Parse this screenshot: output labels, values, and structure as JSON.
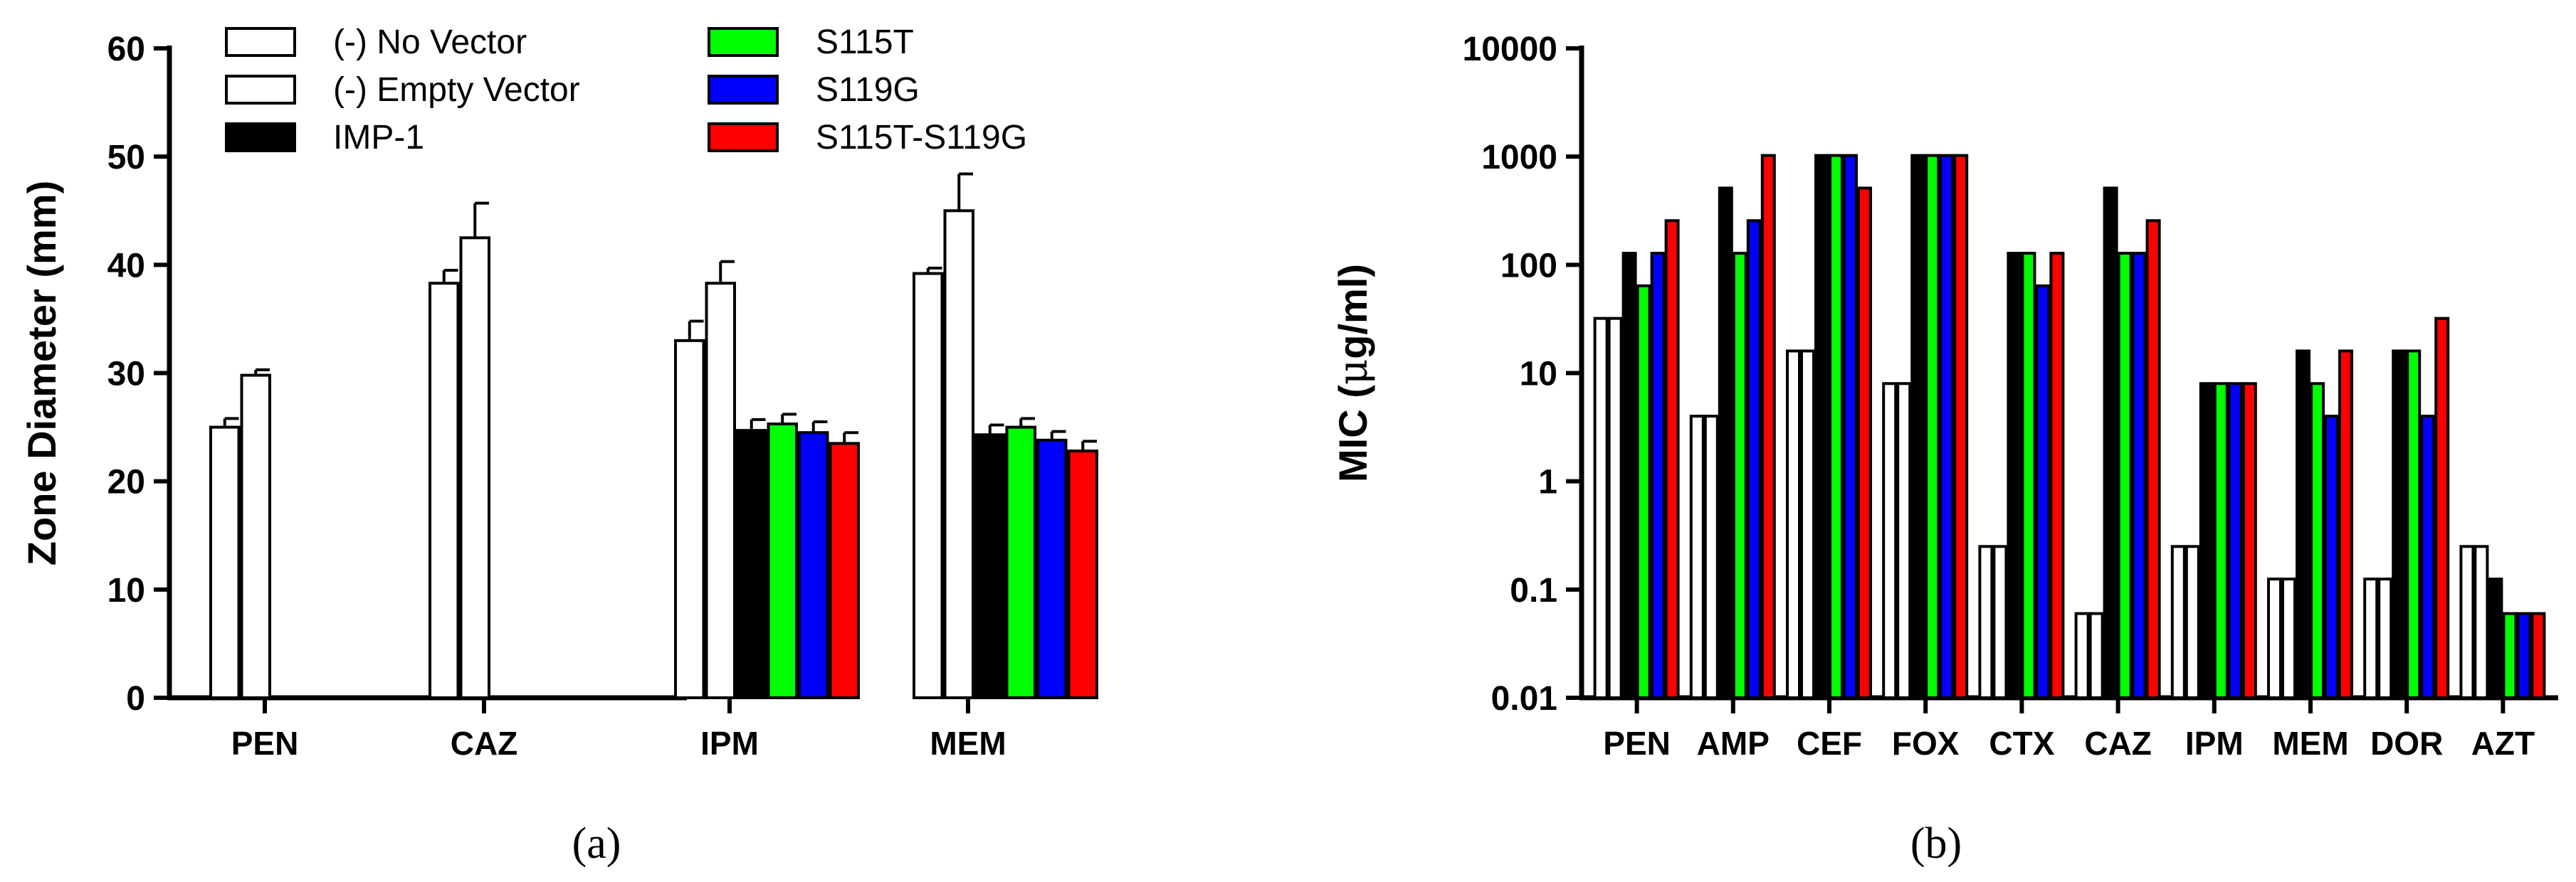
{
  "chart_data": [
    {
      "id": "a",
      "type": "bar",
      "panel_label": "(a)",
      "title": "",
      "xlabel": "",
      "ylabel": "Zone Diameter (mm)",
      "ylim": [
        0,
        60
      ],
      "yticks": [
        0,
        10,
        20,
        30,
        40,
        50,
        60
      ],
      "categories": [
        "PEN",
        "CAZ",
        "IPM",
        "MEM"
      ],
      "series": [
        {
          "name": "(-) No Vector",
          "color": "#ffffff",
          "values": [
            25,
            38.3,
            33,
            39.2
          ],
          "errors": [
            0.8,
            1.2,
            1.8,
            0.5
          ]
        },
        {
          "name": "(-) Empty Vector",
          "color": "#ffffff",
          "values": [
            29.8,
            42.5,
            38.3,
            45
          ],
          "errors": [
            0.5,
            3.2,
            2,
            3.4
          ]
        },
        {
          "name": "IMP-1",
          "color": "#000000",
          "values": [
            0,
            0,
            24.7,
            24.3
          ],
          "errors": [
            0,
            0,
            1,
            0.9
          ]
        },
        {
          "name": "S115T",
          "color": "#00ff00",
          "values": [
            0,
            0,
            25.3,
            25
          ],
          "errors": [
            0,
            0,
            0.9,
            0.8
          ]
        },
        {
          "name": "S119G",
          "color": "#0000ff",
          "values": [
            0,
            0,
            24.5,
            23.8
          ],
          "errors": [
            0,
            0,
            1,
            0.8
          ]
        },
        {
          "name": "S115T-S119G",
          "color": "#ff0000",
          "values": [
            0,
            0,
            23.5,
            22.8
          ],
          "errors": [
            0,
            0,
            1,
            0.9
          ]
        }
      ],
      "legend_position": "top"
    },
    {
      "id": "b",
      "type": "bar",
      "panel_label": "(b)",
      "title": "",
      "xlabel": "",
      "ylabel_main": "MIC (",
      "ylabel_mu": "μ",
      "ylabel_rest": "g/ml)",
      "yscale": "log",
      "ylim": [
        0.01,
        10000
      ],
      "yticks": [
        0.01,
        0.1,
        1,
        10,
        100,
        1000,
        10000
      ],
      "ytick_labels": [
        "0.01",
        "0.1",
        "1",
        "10",
        "100",
        "1000",
        "10000"
      ],
      "categories": [
        "PEN",
        "AMP",
        "CEF",
        "FOX",
        "CTX",
        "CAZ",
        "IPM",
        "MEM",
        "DOR",
        "AZT"
      ],
      "series": [
        {
          "name": "(-) No Vector",
          "color": "#ffffff",
          "values": [
            32,
            4,
            16,
            8,
            0.25,
            0.06,
            0.25,
            0.125,
            0.125,
            0.25
          ]
        },
        {
          "name": "(-) Empty Vector",
          "color": "#ffffff",
          "values": [
            32,
            4,
            16,
            8,
            0.25,
            0.06,
            0.25,
            0.125,
            0.125,
            0.25
          ]
        },
        {
          "name": "IMP-1",
          "color": "#000000",
          "values": [
            128,
            512,
            1024,
            1024,
            128,
            512,
            8,
            16,
            16,
            0.125
          ]
        },
        {
          "name": "S115T",
          "color": "#00ff00",
          "values": [
            64,
            128,
            1024,
            1024,
            128,
            128,
            8,
            8,
            16,
            0.06
          ]
        },
        {
          "name": "S119G",
          "color": "#0000ff",
          "values": [
            128,
            256,
            1024,
            1024,
            64,
            128,
            8,
            4,
            4,
            0.06
          ]
        },
        {
          "name": "S115T-S119G",
          "color": "#ff0000",
          "values": [
            256,
            1024,
            512,
            1024,
            128,
            256,
            8,
            16,
            32,
            0.06
          ]
        }
      ]
    }
  ]
}
